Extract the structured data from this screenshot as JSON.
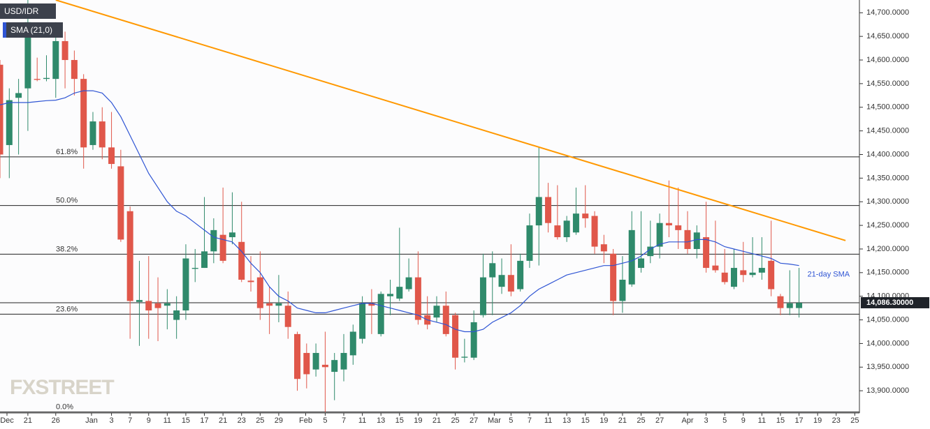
{
  "chart_data": {
    "type": "candlestick",
    "title": "USD/IDR",
    "indicator_label": "SMA (21,0)",
    "watermark": "FXSTREET",
    "up_color": "#2f8a6b",
    "down_color": "#e0574a",
    "open": [
      14590,
      14420,
      14520,
      14540,
      14560,
      14560,
      14560,
      14640,
      14600,
      14560,
      14420,
      14470,
      14415,
      14375,
      14280,
      14088,
      14090,
      14085,
      14080,
      14050,
      14070,
      14158,
      14160,
      14195,
      14230,
      14225,
      14215,
      14133,
      14140,
      14085,
      14080,
      14080,
      14020,
      13980,
      13945,
      13955,
      13940,
      13945,
      13975,
      14010,
      14085,
      14020,
      14100,
      14095,
      14115,
      14140,
      14060,
      14055,
      14080,
      14060,
      13970,
      13970,
      14060,
      14140,
      14120,
      14145,
      14115,
      14175,
      14250,
      14310,
      14250,
      14225,
      14235,
      14275,
      14270,
      14210,
      14190,
      14090,
      14125,
      14160,
      14185,
      14205,
      14255,
      14250,
      14240,
      14200,
      14225,
      14165,
      14150,
      14120,
      14155,
      14145,
      14150,
      14175,
      14100,
      14075,
      14075
    ],
    "high": [
      14600,
      14540,
      14560,
      14730,
      14605,
      14610,
      14680,
      14660,
      14620,
      14570,
      14490,
      14500,
      14490,
      14410,
      14290,
      14175,
      14185,
      14140,
      14115,
      14100,
      14210,
      14200,
      14310,
      14265,
      14330,
      14320,
      14300,
      14185,
      14195,
      14120,
      14145,
      14110,
      14025,
      14000,
      14000,
      14025,
      13980,
      14020,
      14040,
      14100,
      14115,
      14110,
      14135,
      14245,
      14180,
      14195,
      14100,
      14100,
      14110,
      14065,
      14010,
      14070,
      14190,
      14195,
      14180,
      14210,
      14190,
      14275,
      14415,
      14340,
      14335,
      14270,
      14330,
      14335,
      14280,
      14230,
      14200,
      14185,
      14280,
      14280,
      14260,
      14275,
      14345,
      14330,
      14280,
      14250,
      14300,
      14260,
      14200,
      14200,
      14215,
      14225,
      14225,
      14260,
      14105,
      14155,
      14160
    ],
    "low": [
      14350,
      14350,
      14400,
      14450,
      14555,
      14555,
      14520,
      14540,
      14525,
      14370,
      14410,
      14390,
      14370,
      14215,
      14010,
      13995,
      14010,
      14005,
      14030,
      14010,
      14050,
      14130,
      14160,
      14170,
      14170,
      14210,
      14130,
      14110,
      14050,
      14020,
      14045,
      14010,
      13900,
      13905,
      13930,
      13855,
      13880,
      13920,
      13955,
      14000,
      14020,
      14015,
      14060,
      14090,
      14110,
      14040,
      14030,
      14045,
      14015,
      13945,
      13960,
      13965,
      14055,
      14060,
      14105,
      14100,
      14110,
      14160,
      14165,
      14235,
      14220,
      14215,
      14230,
      14245,
      14190,
      14170,
      14060,
      14065,
      14120,
      14150,
      14170,
      14180,
      14225,
      14200,
      14190,
      14180,
      14150,
      14150,
      14125,
      14115,
      14130,
      14140,
      14135,
      14100,
      14060,
      14060,
      14055
    ],
    "close": [
      14400,
      14515,
      14530,
      14680,
      14558,
      14562,
      14640,
      14600,
      14560,
      14415,
      14470,
      14415,
      14380,
      14220,
      14090,
      14092,
      14070,
      14075,
      14085,
      14070,
      14180,
      14160,
      14195,
      14240,
      14175,
      14235,
      14135,
      14130,
      14075,
      14080,
      14085,
      14035,
      13925,
      13935,
      13980,
      13950,
      13965,
      13980,
      14025,
      14085,
      14080,
      14105,
      14105,
      14120,
      14140,
      14050,
      14040,
      14080,
      14020,
      13970,
      13972,
      14045,
      14140,
      14170,
      14145,
      14110,
      14175,
      14250,
      14310,
      14255,
      14225,
      14260,
      14275,
      14265,
      14205,
      14195,
      14090,
      14135,
      14240,
      14180,
      14205,
      14255,
      14250,
      14240,
      14200,
      14235,
      14160,
      14155,
      14130,
      14160,
      14145,
      14150,
      14160,
      14115,
      14075,
      14085,
      14086
    ],
    "sma": {
      "name": "21-day SMA",
      "color": "#2f55d4",
      "values": [
        14505,
        14510,
        14510,
        14510,
        14512,
        14514,
        14515,
        14520,
        14530,
        14535,
        14535,
        14530,
        14510,
        14480,
        14440,
        14400,
        14360,
        14330,
        14300,
        14280,
        14270,
        14255,
        14240,
        14225,
        14220,
        14215,
        14195,
        14170,
        14150,
        14120,
        14100,
        14090,
        14075,
        14070,
        14065,
        14065,
        14070,
        14075,
        14080,
        14085,
        14085,
        14080,
        14075,
        14070,
        14065,
        14060,
        14050,
        14045,
        14040,
        14030,
        14025,
        14025,
        14030,
        14045,
        14055,
        14065,
        14080,
        14100,
        14115,
        14125,
        14135,
        14145,
        14150,
        14155,
        14160,
        14165,
        14165,
        14170,
        14175,
        14185,
        14200,
        14210,
        14215,
        14215,
        14215,
        14220,
        14220,
        14215,
        14205,
        14200,
        14195,
        14190,
        14185,
        14180,
        14170,
        14168,
        14165
      ]
    },
    "trendline": {
      "color": "#ff9800",
      "x": [
        6,
        91
      ],
      "values": [
        14727,
        14218
      ]
    },
    "fib_levels": {
      "labels": [
        "61.8%",
        "50.0%",
        "38.2%",
        "23.6%",
        "0.0%"
      ],
      "values": [
        14395,
        14292,
        14189,
        14062,
        13855
      ]
    },
    "last_price": {
      "value": 14086.3,
      "label": "14,086.30000"
    },
    "xlim": [
      0,
      92.5
    ],
    "ylim": [
      13853,
      14727
    ],
    "xticks": [
      {
        "value": 0.75,
        "label": "Dec"
      },
      {
        "value": 3,
        "label": "21"
      },
      {
        "value": 6,
        "label": "26"
      },
      {
        "value": 9.85,
        "label": "Jan"
      },
      {
        "value": 12,
        "label": "3"
      },
      {
        "value": 14,
        "label": "7"
      },
      {
        "value": 16,
        "label": "9"
      },
      {
        "value": 18,
        "label": "11"
      },
      {
        "value": 20,
        "label": "15"
      },
      {
        "value": 22,
        "label": "17"
      },
      {
        "value": 24,
        "label": "21"
      },
      {
        "value": 26,
        "label": "23"
      },
      {
        "value": 28,
        "label": "25"
      },
      {
        "value": 30,
        "label": "29"
      },
      {
        "value": 32.9,
        "label": "Feb"
      },
      {
        "value": 35,
        "label": "5"
      },
      {
        "value": 37,
        "label": "7"
      },
      {
        "value": 39,
        "label": "11"
      },
      {
        "value": 41,
        "label": "13"
      },
      {
        "value": 43,
        "label": "15"
      },
      {
        "value": 45,
        "label": "19"
      },
      {
        "value": 47,
        "label": "21"
      },
      {
        "value": 49,
        "label": "25"
      },
      {
        "value": 51,
        "label": "27"
      },
      {
        "value": 53.2,
        "label": "Mar"
      },
      {
        "value": 55,
        "label": "5"
      },
      {
        "value": 57,
        "label": "7"
      },
      {
        "value": 59,
        "label": "11"
      },
      {
        "value": 61,
        "label": "13"
      },
      {
        "value": 63,
        "label": "15"
      },
      {
        "value": 65,
        "label": "19"
      },
      {
        "value": 67,
        "label": "21"
      },
      {
        "value": 69,
        "label": "25"
      },
      {
        "value": 71,
        "label": "27"
      },
      {
        "value": 74,
        "label": "Apr"
      },
      {
        "value": 76,
        "label": "3"
      },
      {
        "value": 78,
        "label": "5"
      },
      {
        "value": 80,
        "label": "9"
      },
      {
        "value": 82,
        "label": "11"
      },
      {
        "value": 84,
        "label": "15"
      },
      {
        "value": 86,
        "label": "17"
      },
      {
        "value": 88,
        "label": "19"
      },
      {
        "value": 90,
        "label": "23"
      },
      {
        "value": 92,
        "label": "25"
      }
    ],
    "yticks": [
      {
        "value": 13900,
        "label": "13,900.0000"
      },
      {
        "value": 13950,
        "label": "13,950.0000"
      },
      {
        "value": 14000,
        "label": "14,000.0000"
      },
      {
        "value": 14050,
        "label": "14,050.0000"
      },
      {
        "value": 14100,
        "label": "14,100.0000"
      },
      {
        "value": 14150,
        "label": "14,150.0000"
      },
      {
        "value": 14200,
        "label": "14,200.0000"
      },
      {
        "value": 14250,
        "label": "14,250.0000"
      },
      {
        "value": 14300,
        "label": "14,300.0000"
      },
      {
        "value": 14350,
        "label": "14,350.0000"
      },
      {
        "value": 14400,
        "label": "14,400.0000"
      },
      {
        "value": 14450,
        "label": "14,450.0000"
      },
      {
        "value": 14500,
        "label": "14,500.0000"
      },
      {
        "value": 14550,
        "label": "14,550.0000"
      },
      {
        "value": 14600,
        "label": "14,600.0000"
      },
      {
        "value": 14650,
        "label": "14,650.0000"
      },
      {
        "value": 14700,
        "label": "14,700.0000"
      }
    ]
  }
}
